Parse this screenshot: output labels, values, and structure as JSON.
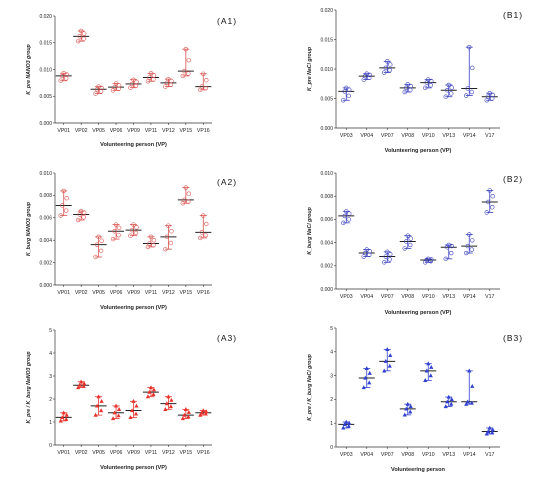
{
  "chart_data": [
    {
      "panel": "(A1)",
      "type": "scatter",
      "color": "#d9534f",
      "ylabel": "K_pre NANO3 group",
      "xlabel": "Volunteering person (VP)",
      "ylim": [
        0,
        0.02
      ],
      "yticks": [
        "0.000",
        "0.005",
        "0.010",
        "0.015",
        "0.020"
      ],
      "categories": [
        "VP01",
        "VP02",
        "VP05",
        "VP06",
        "VP09",
        "VP11",
        "VP12",
        "VP15",
        "VP16"
      ],
      "median": [
        0.0088,
        0.0162,
        0.0063,
        0.0067,
        0.0073,
        0.0085,
        0.0075,
        0.0097,
        0.0068
      ],
      "min": [
        0.0079,
        0.0153,
        0.0055,
        0.0061,
        0.0066,
        0.0078,
        0.0068,
        0.0088,
        0.0062
      ],
      "max": [
        0.0093,
        0.0172,
        0.0068,
        0.0074,
        0.0081,
        0.0093,
        0.0082,
        0.0138,
        0.0092
      ]
    },
    {
      "panel": "(B1)",
      "type": "scatter",
      "color": "#3a3fbf",
      "ylabel": "K_pre NaCl group",
      "xlabel": "Volunteering person (VP)",
      "ylim": [
        0,
        0.02
      ],
      "yticks": [
        "0.000",
        "0.005",
        "0.010",
        "0.015",
        "0.020"
      ],
      "categories": [
        "VP03",
        "VP04",
        "VP07",
        "VP08",
        "VP10",
        "VP13",
        "VP14",
        "V17"
      ],
      "median": [
        0.0062,
        0.0088,
        0.0102,
        0.0068,
        0.0077,
        0.0064,
        0.0067,
        0.0053
      ],
      "min": [
        0.0047,
        0.0082,
        0.0094,
        0.0061,
        0.0068,
        0.0053,
        0.0055,
        0.0047
      ],
      "max": [
        0.0068,
        0.0092,
        0.0113,
        0.0074,
        0.0082,
        0.0073,
        0.0137,
        0.0059
      ]
    },
    {
      "panel": "(A2)",
      "type": "scatter",
      "color": "#d9534f",
      "ylabel": "K_burg NANO3 group",
      "xlabel": "Volunteering person (VP)",
      "ylim": [
        0,
        0.01
      ],
      "yticks": [
        "0.000",
        "0.002",
        "0.004",
        "0.006",
        "0.008",
        "0.010"
      ],
      "categories": [
        "VP01",
        "VP02",
        "VP05",
        "VP06",
        "VP09",
        "VP11",
        "VP12",
        "VP15",
        "VP16"
      ],
      "median": [
        0.0071,
        0.0063,
        0.0036,
        0.0048,
        0.0049,
        0.0037,
        0.0043,
        0.0076,
        0.0047
      ],
      "min": [
        0.0062,
        0.0058,
        0.0025,
        0.0041,
        0.0044,
        0.0034,
        0.0032,
        0.0073,
        0.0042
      ],
      "max": [
        0.0084,
        0.0066,
        0.0043,
        0.0054,
        0.0054,
        0.0043,
        0.0053,
        0.0087,
        0.0062
      ]
    },
    {
      "panel": "(B2)",
      "type": "scatter",
      "color": "#3a3fbf",
      "ylabel": "K_burg NaCl group",
      "xlabel": "Volunteering person (VP)",
      "ylim": [
        0,
        0.01
      ],
      "yticks": [
        "0.000",
        "0.002",
        "0.004",
        "0.006",
        "0.008",
        "0.010"
      ],
      "categories": [
        "VP03",
        "VP04",
        "VP07",
        "VP08",
        "VP10",
        "VP13",
        "VP14",
        "V17"
      ],
      "median": [
        0.0063,
        0.0031,
        0.0028,
        0.0041,
        0.0025,
        0.0036,
        0.0037,
        0.0075
      ],
      "min": [
        0.0057,
        0.0028,
        0.0023,
        0.0035,
        0.0023,
        0.0026,
        0.0031,
        0.0066
      ],
      "max": [
        0.0067,
        0.0034,
        0.0032,
        0.0046,
        0.0026,
        0.0038,
        0.0047,
        0.0085
      ]
    },
    {
      "panel": "(A3)",
      "type": "scatter",
      "color": "#e8322c",
      "filled": true,
      "ylabel": "K_pre / K_burg NaNO3 group",
      "xlabel": "Volunteering person (VP)",
      "ylim": [
        0,
        5
      ],
      "yticks": [
        "0",
        "1",
        "2",
        "3",
        "4",
        "5"
      ],
      "categories": [
        "VP01",
        "VP02",
        "VP05",
        "VP06",
        "VP09",
        "VP11",
        "VP12",
        "VP15",
        "VP16"
      ],
      "median": [
        1.2,
        2.6,
        1.7,
        1.4,
        1.5,
        2.3,
        1.8,
        1.3,
        1.4
      ],
      "min": [
        1.05,
        2.5,
        1.3,
        1.15,
        1.2,
        2.1,
        1.55,
        1.15,
        1.3
      ],
      "max": [
        1.4,
        2.75,
        2.1,
        1.7,
        1.9,
        2.5,
        2.1,
        1.55,
        1.5
      ]
    },
    {
      "panel": "(B3)",
      "type": "scatter",
      "color": "#2f3fcf",
      "filled": true,
      "ylabel": "K_pre / K_burg NaCl group",
      "xlabel": "Volunteering person",
      "ylim": [
        0,
        5
      ],
      "yticks": [
        "0",
        "1",
        "2",
        "3",
        "4",
        "5"
      ],
      "categories": [
        "VP03",
        "VP04",
        "VP07",
        "VP08",
        "VP10",
        "VP13",
        "VP14",
        "V17"
      ],
      "median": [
        0.95,
        2.9,
        3.6,
        1.6,
        3.2,
        1.9,
        1.9,
        0.65
      ],
      "min": [
        0.8,
        2.5,
        3.2,
        1.35,
        2.8,
        1.7,
        1.8,
        0.55
      ],
      "max": [
        1.05,
        3.3,
        4.1,
        1.8,
        3.5,
        2.1,
        3.2,
        0.8
      ]
    }
  ]
}
